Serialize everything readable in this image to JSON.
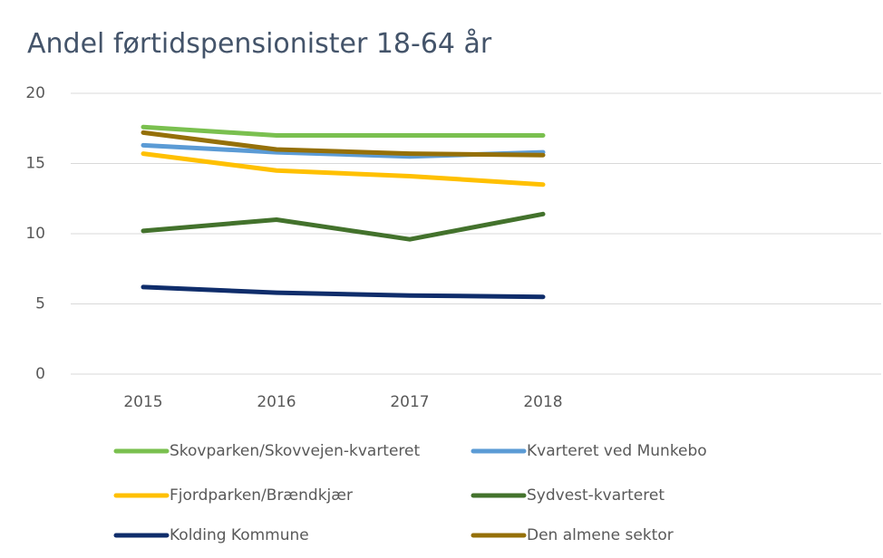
{
  "chart_data": {
    "type": "line",
    "title": "Andel førtidspensionister 18-64 år",
    "categories": [
      "2015",
      "2016",
      "2017",
      "2018",
      null,
      null
    ],
    "ylim": [
      0,
      20
    ],
    "yticks": [
      0,
      5,
      10,
      15,
      20
    ],
    "grid": true,
    "series": [
      {
        "name": "Skovparken/Skovvejen-kvarteret",
        "color": "#7ac04f",
        "values": [
          17.6,
          17.0,
          17.0,
          17.0,
          null,
          null
        ]
      },
      {
        "name": "Kvarteret ved Munkebo",
        "color": "#5b9bd5",
        "values": [
          16.3,
          15.8,
          15.5,
          15.8,
          null,
          null
        ]
      },
      {
        "name": "Fjordparken/Brændkjær",
        "color": "#ffc000",
        "values": [
          15.7,
          14.5,
          14.1,
          13.5,
          null,
          null
        ]
      },
      {
        "name": "Sydvest-kvarteret",
        "color": "#43722c",
        "values": [
          10.2,
          11.0,
          9.6,
          11.4,
          null,
          null
        ]
      },
      {
        "name": "Kolding Kommune",
        "color": "#0f2d6b",
        "values": [
          6.2,
          5.8,
          5.6,
          5.5,
          null,
          null
        ]
      },
      {
        "name": "Den almene sektor",
        "color": "#957009",
        "values": [
          17.2,
          16.0,
          15.7,
          15.6,
          null,
          null
        ]
      }
    ]
  }
}
